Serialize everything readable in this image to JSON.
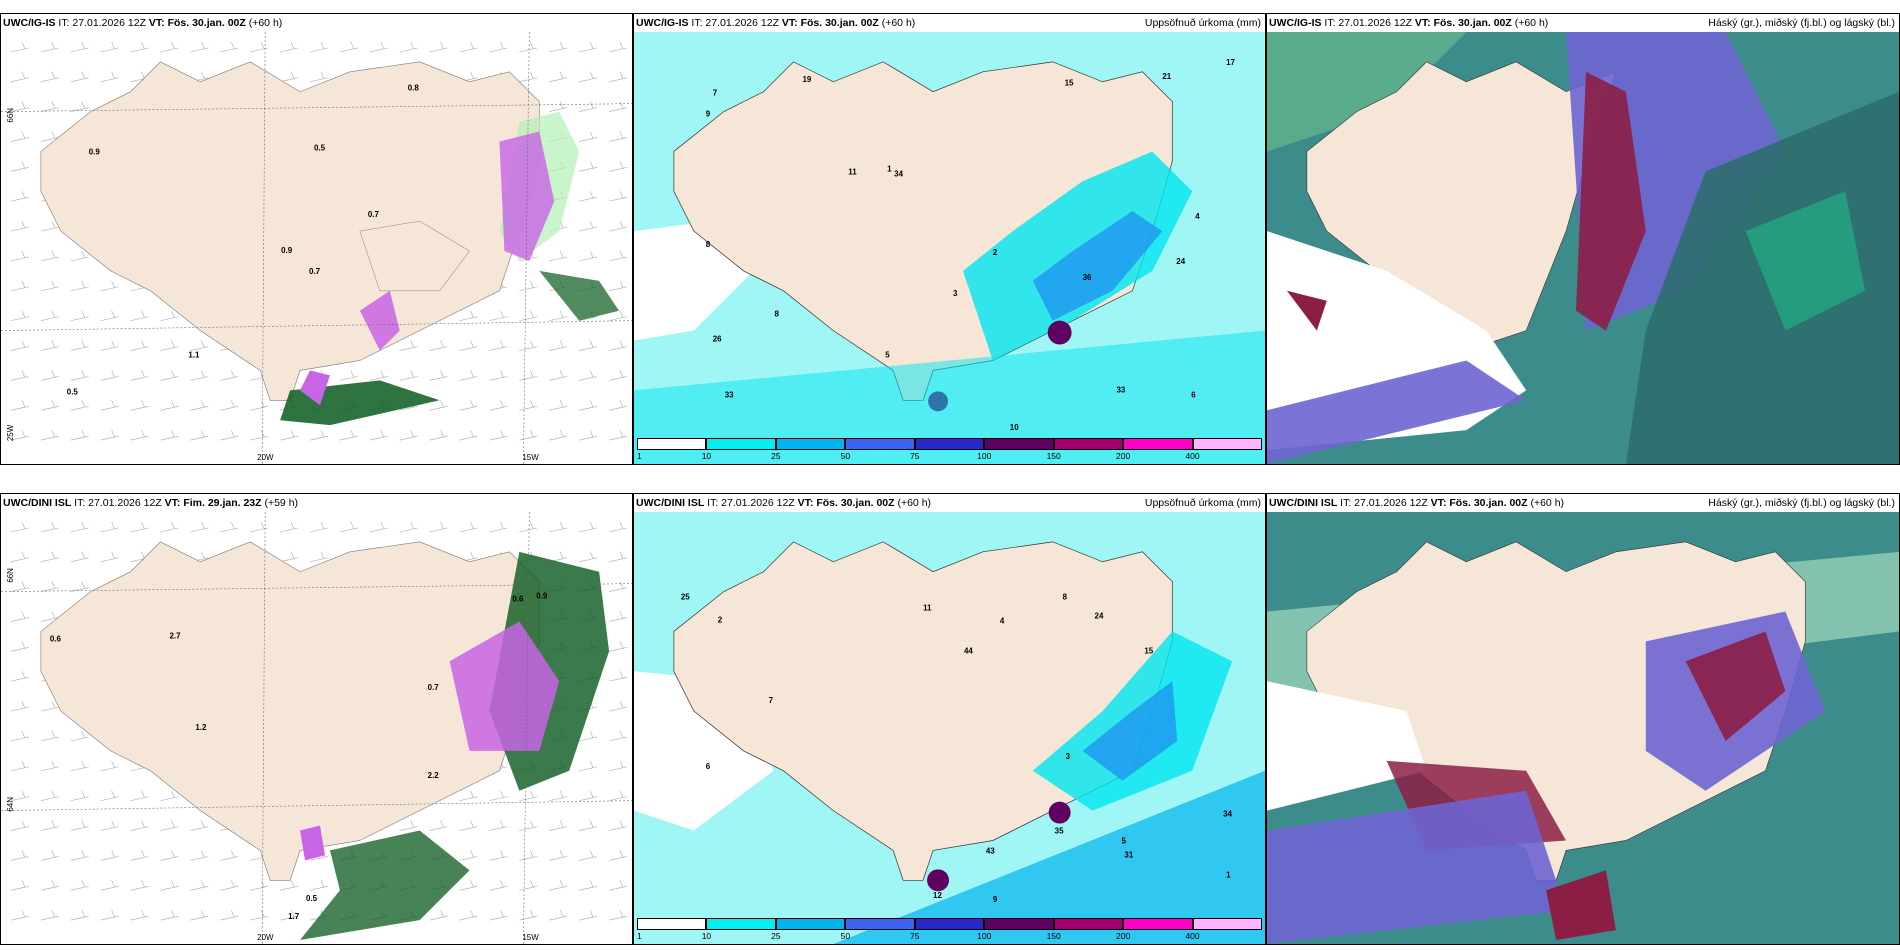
{
  "panels": {
    "tl": {
      "model": "UWC/IG-IS",
      "it": "IT: 27.01.2026 12Z",
      "vt_label": "VT:",
      "vt": "Fös. 30.jan. 00Z",
      "lead": "(+60 h)",
      "right": ""
    },
    "tm": {
      "model": "UWC/IG-IS",
      "it": "IT: 27.01.2026 12Z",
      "vt_label": "VT:",
      "vt": "Fös. 30.jan. 00Z",
      "lead": "(+60 h)",
      "right": "Uppsöfnuð úrkoma (mm)"
    },
    "tr": {
      "model": "UWC/IG-IS",
      "it": "IT: 27.01.2026 12Z",
      "vt_label": "VT:",
      "vt": "Fös. 30.jan. 00Z",
      "lead": "(+60 h)",
      "right": "Háský (gr.), miðský (fj.bl.) og lágský (bl.)"
    },
    "bl": {
      "model": "UWC/DINI ISL",
      "it": "IT: 27.01.2026 12Z",
      "vt_label": "VT:",
      "vt": "Fim. 29.jan. 23Z",
      "lead": "(+59 h)",
      "right": ""
    },
    "bm": {
      "model": "UWC/DINI ISL",
      "it": "IT: 27.01.2026 12Z",
      "vt_label": "VT:",
      "vt": "Fös. 30.jan. 00Z",
      "lead": "(+60 h)",
      "right": "Uppsöfnuð úrkoma (mm)"
    },
    "br": {
      "model": "UWC/DINI ISL",
      "it": "IT: 27.01.2026 12Z",
      "vt_label": "VT:",
      "vt": "Fös. 30.jan. 00Z",
      "lead": "(+60 h)",
      "right": "Háský (gr.), miðský (fj.bl.) og lágský (bl.)"
    }
  },
  "axis_labels": {
    "lon_20": "20W",
    "lon_15": "15W",
    "lat_66": "66N",
    "lat_64": "64N",
    "lon_25": "25W"
  },
  "colorbar": {
    "ticks": [
      "1",
      "10",
      "25",
      "50",
      "75",
      "100",
      "150",
      "200",
      "400"
    ],
    "colors": [
      "#ffffff",
      "#00f0f0",
      "#00b4f0",
      "#3c64f0",
      "#2828c8",
      "#600060",
      "#a0006e",
      "#ff00c8",
      "#ffb4ff"
    ]
  },
  "colors": {
    "land": "#f5e6d8",
    "cyan_light": "#a0f5f5",
    "cyan": "#00e6f0",
    "blue": "#1e96f0",
    "green_light": "#b4f0b4",
    "green_dark": "#0a5a1e",
    "purple": "#c864e6",
    "cloud_blue": "#6e64d2",
    "cloud_teal": "#3c8c8c",
    "cloud_red": "#8c1e46"
  },
  "values": {
    "tl": [
      "0.7",
      "0.9",
      "0.9",
      "0.5",
      "0.7",
      "1.1",
      "0.8",
      "0.5"
    ],
    "tm": [
      "36",
      "24",
      "33",
      "19",
      "34",
      "33",
      "26",
      "15",
      "11",
      "10",
      "9",
      "8",
      "7",
      "6",
      "5",
      "4",
      "3",
      "2",
      "1",
      "8",
      "17",
      "21"
    ],
    "bl": [
      "0.6",
      "2.7",
      "0.7",
      "0.5",
      "0.6",
      "1.7",
      "2.2",
      "1.2",
      "0.9"
    ],
    "bm": [
      "44",
      "31",
      "25",
      "15",
      "12",
      "11",
      "9",
      "8",
      "7",
      "6",
      "5",
      "4",
      "3",
      "2",
      "1",
      "24",
      "34",
      "35",
      "43"
    ]
  }
}
